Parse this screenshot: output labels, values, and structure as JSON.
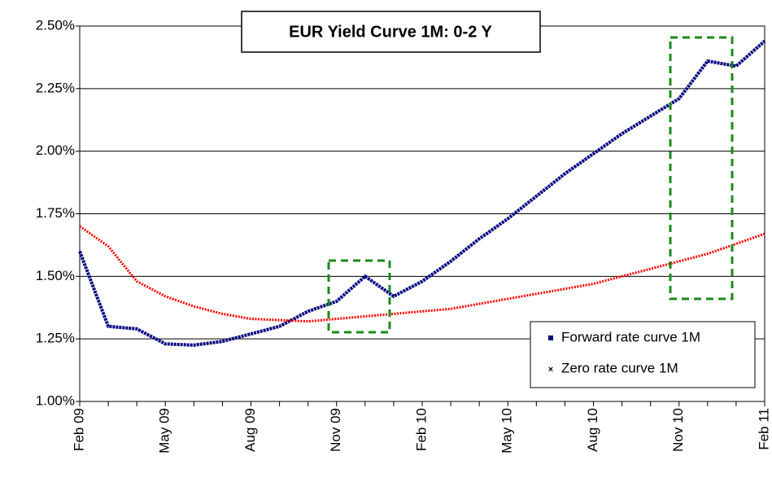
{
  "chart_data": {
    "type": "line",
    "title": "EUR Yield Curve 1M: 0-2 Y",
    "categories": [
      "Feb 09",
      null,
      null,
      "May 09",
      null,
      null,
      "Aug 09",
      null,
      null,
      "Nov 09",
      null,
      null,
      "Feb 10",
      null,
      null,
      "May 10",
      null,
      null,
      "Aug 10",
      null,
      null,
      "Nov 10",
      null,
      null,
      "Feb 11"
    ],
    "series": [
      {
        "name": "Forward rate curve 1M",
        "color": "#000080",
        "values": [
          1.6,
          1.3,
          1.29,
          1.23,
          1.225,
          1.24,
          1.27,
          1.3,
          1.36,
          1.4,
          1.5,
          1.42,
          1.48,
          1.56,
          1.65,
          1.73,
          1.82,
          1.91,
          1.99,
          2.07,
          2.14,
          2.21,
          2.36,
          2.34,
          2.44
        ]
      },
      {
        "name": "Zero rate curve 1M",
        "color": "#ff0000",
        "values": [
          1.7,
          1.62,
          1.48,
          1.42,
          1.38,
          1.35,
          1.33,
          1.325,
          1.32,
          1.33,
          1.34,
          1.35,
          1.36,
          1.37,
          1.39,
          1.41,
          1.43,
          1.45,
          1.47,
          1.5,
          1.53,
          1.56,
          1.59,
          1.63,
          1.67
        ]
      }
    ],
    "ylim": [
      1.0,
      2.5
    ],
    "yticks": [
      {
        "value": 1.0,
        "label": "1.00%"
      },
      {
        "value": 1.25,
        "label": "1.25%"
      },
      {
        "value": 1.5,
        "label": "1.50%"
      },
      {
        "value": 1.75,
        "label": "1.75%"
      },
      {
        "value": 2.0,
        "label": "2.00%"
      },
      {
        "value": 2.25,
        "label": "2.25%"
      },
      {
        "value": 2.5,
        "label": "2.50%"
      }
    ],
    "grid": true,
    "legend": "lower right"
  }
}
